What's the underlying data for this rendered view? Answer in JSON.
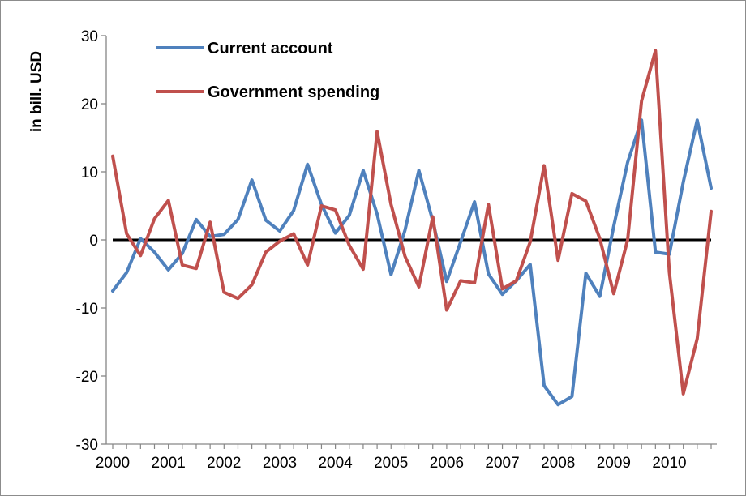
{
  "chart_data": {
    "type": "line",
    "ylabel": "in bill. USD",
    "ylim": [
      -30,
      30
    ],
    "y_ticks": [
      "30",
      "20",
      "10",
      "0",
      "-10",
      "-20",
      "-30"
    ],
    "x_tick_labels": [
      "2000",
      "2001",
      "2002",
      "2003",
      "2004",
      "2005",
      "2006",
      "2007",
      "2008",
      "2009",
      "2010"
    ],
    "x_range": [
      2000,
      2010.75
    ],
    "zero_line": true,
    "legend_position": "top-left, inside plot",
    "grid": false,
    "x": [
      2000,
      2000.25,
      2000.5,
      2000.75,
      2001,
      2001.25,
      2001.5,
      2001.75,
      2002,
      2002.25,
      2002.5,
      2002.75,
      2003,
      2003.25,
      2003.5,
      2003.75,
      2004,
      2004.25,
      2004.5,
      2004.75,
      2005,
      2005.25,
      2005.5,
      2005.75,
      2006,
      2006.25,
      2006.5,
      2006.75,
      2007,
      2007.25,
      2007.5,
      2007.75,
      2008,
      2008.25,
      2008.5,
      2008.75,
      2009,
      2009.25,
      2009.5,
      2009.75,
      2010,
      2010.25,
      2010.5,
      2010.75
    ],
    "series": [
      {
        "name": "Current account",
        "color": "#4f81bd",
        "values": [
          -7.5,
          -4.8,
          0.2,
          -1.8,
          -4.4,
          -2.0,
          3.0,
          0.5,
          0.8,
          3.0,
          8.8,
          2.9,
          1.3,
          4.3,
          11.1,
          5.2,
          1.0,
          3.6,
          10.2,
          3.8,
          -5.1,
          1.4,
          10.2,
          2.8,
          -6.1,
          -0.3,
          5.6,
          -5.0,
          -8.0,
          -6.0,
          -3.6,
          -21.4,
          -24.2,
          -23.0,
          -4.9,
          -8.3,
          2.0,
          11.4,
          17.6,
          -1.8,
          -2.1,
          8.5,
          17.6,
          7.6
        ]
      },
      {
        "name": "Government spending",
        "color": "#c0504d",
        "values": [
          12.3,
          0.9,
          -2.3,
          3.1,
          5.8,
          -3.7,
          -4.2,
          2.6,
          -7.7,
          -8.6,
          -6.6,
          -1.8,
          -0.2,
          0.9,
          -3.7,
          5.0,
          4.4,
          -0.8,
          -4.3,
          15.9,
          5.2,
          -2.4,
          -6.9,
          3.4,
          -10.3,
          -6.0,
          -6.3,
          5.2,
          -7.2,
          -6.0,
          -0.3,
          10.9,
          -3.0,
          6.8,
          5.7,
          0.2,
          -7.9,
          0.0,
          20.4,
          27.8,
          -4.8,
          -22.6,
          -14.5,
          4.2
        ]
      }
    ]
  }
}
